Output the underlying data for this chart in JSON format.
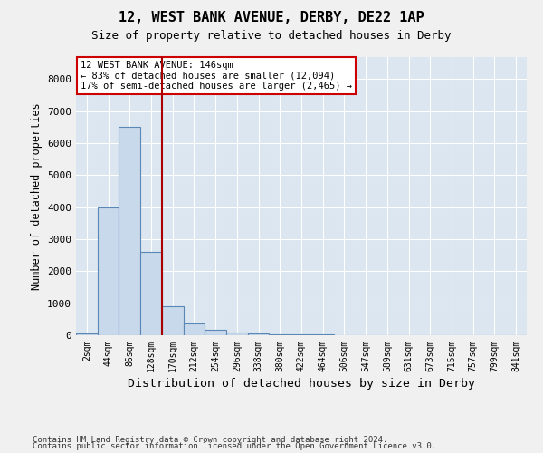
{
  "title1": "12, WEST BANK AVENUE, DERBY, DE22 1AP",
  "title2": "Size of property relative to detached houses in Derby",
  "xlabel": "Distribution of detached houses by size in Derby",
  "ylabel": "Number of detached properties",
  "bar_color": "#c9d9ec",
  "bar_edge_color": "#5b87b5",
  "vline_color": "#aa0000",
  "vline_x_index": 3,
  "annotation_line1": "12 WEST BANK AVENUE: 146sqm",
  "annotation_line2": "← 83% of detached houses are smaller (12,094)",
  "annotation_line3": "17% of semi-detached houses are larger (2,465) →",
  "annotation_box_color": "#cc0000",
  "background_color": "#dce6f0",
  "fig_background": "#f0f0f0",
  "categories": [
    "2sqm",
    "44sqm",
    "86sqm",
    "128sqm",
    "170sqm",
    "212sqm",
    "254sqm",
    "296sqm",
    "338sqm",
    "380sqm",
    "422sqm",
    "464sqm",
    "506sqm",
    "547sqm",
    "589sqm",
    "631sqm",
    "673sqm",
    "715sqm",
    "757sqm",
    "799sqm",
    "841sqm"
  ],
  "values": [
    50,
    4000,
    6500,
    2600,
    900,
    380,
    160,
    80,
    55,
    40,
    25,
    15,
    8,
    5,
    3,
    2,
    1,
    1,
    1,
    0,
    0
  ],
  "ylim": [
    0,
    8700
  ],
  "yticks": [
    0,
    1000,
    2000,
    3000,
    4000,
    5000,
    6000,
    7000,
    8000
  ],
  "footer1": "Contains HM Land Registry data © Crown copyright and database right 2024.",
  "footer2": "Contains public sector information licensed under the Open Government Licence v3.0."
}
